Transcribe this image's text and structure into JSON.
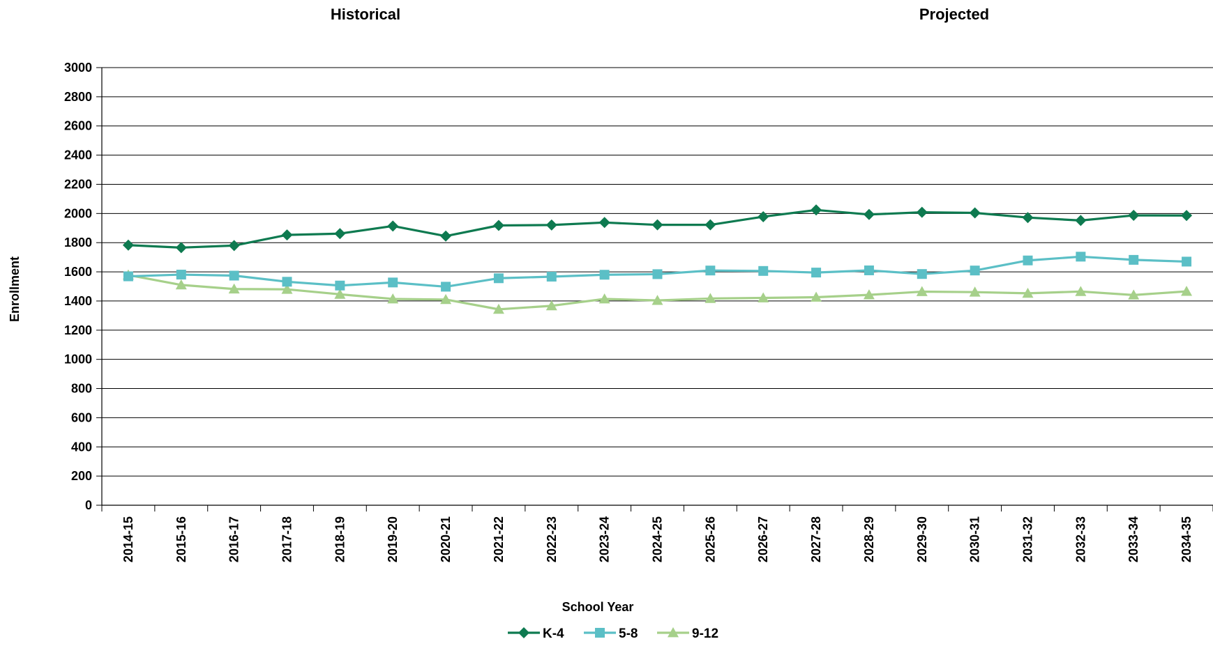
{
  "chart_data": {
    "type": "line",
    "section_labels": [
      "Historical",
      "Projected"
    ],
    "xlabel": "School Year",
    "ylabel": "Enrollment",
    "ylim": [
      0,
      3000
    ],
    "yticks": [
      0,
      200,
      400,
      600,
      800,
      1000,
      1200,
      1400,
      1600,
      1800,
      2000,
      2200,
      2400,
      2600,
      2800,
      3000
    ],
    "grid": "horizontal",
    "legend_position": "bottom",
    "categories": [
      "2014-15",
      "2015-16",
      "2016-17",
      "2017-18",
      "2018-19",
      "2019-20",
      "2020-21",
      "2021-22",
      "2022-23",
      "2023-24",
      "2024-25",
      "2025-26",
      "2026-27",
      "2027-28",
      "2028-29",
      "2029-30",
      "2030-31",
      "2031-32",
      "2032-33",
      "2033-34",
      "2034-35"
    ],
    "series": [
      {
        "name": "K-4",
        "marker": "diamond",
        "color": "#0E7A50",
        "values": [
          1783,
          1766,
          1780,
          1853,
          1862,
          1914,
          1845,
          1918,
          1921,
          1938,
          1922,
          1922,
          1978,
          2024,
          1993,
          2008,
          2004,
          1972,
          1952,
          1987,
          1986
        ]
      },
      {
        "name": "5-8",
        "marker": "square",
        "color": "#5BBFC6",
        "values": [
          1569,
          1581,
          1574,
          1532,
          1506,
          1527,
          1498,
          1556,
          1567,
          1580,
          1584,
          1609,
          1606,
          1595,
          1610,
          1585,
          1609,
          1678,
          1704,
          1682,
          1670
        ]
      },
      {
        "name": "9-12",
        "marker": "triangle",
        "color": "#A6D08A",
        "values": [
          1578,
          1510,
          1482,
          1480,
          1446,
          1414,
          1410,
          1343,
          1367,
          1414,
          1404,
          1417,
          1421,
          1426,
          1442,
          1464,
          1461,
          1453,
          1465,
          1441,
          1466
        ]
      }
    ]
  }
}
